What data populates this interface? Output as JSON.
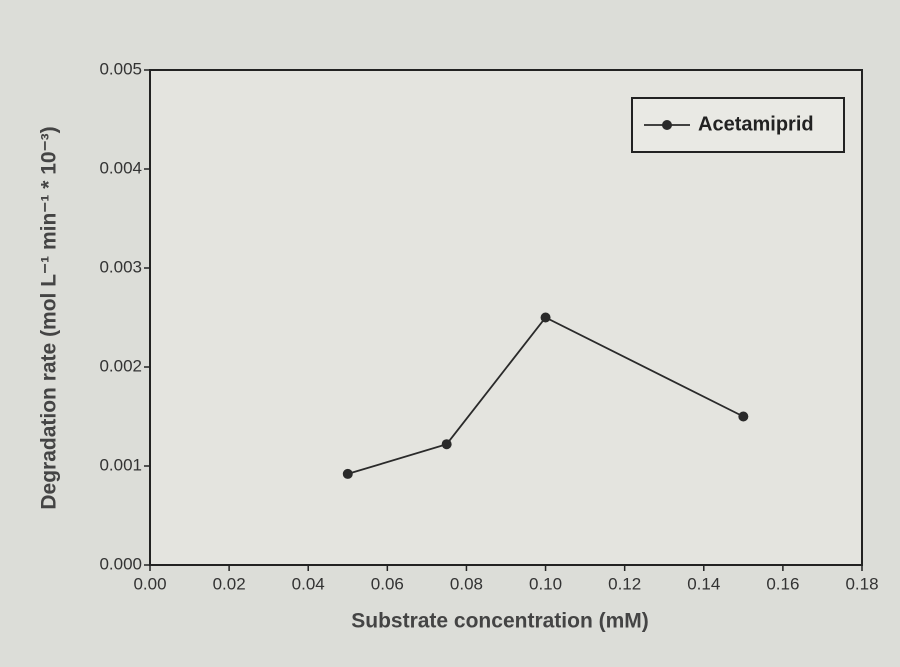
{
  "chart_data": {
    "type": "line",
    "x_label": "Substrate concentration (mM)",
    "y_label": "Degradation rate (mol L⁻¹ min⁻¹ * 10⁻³)",
    "x": [
      0.05,
      0.075,
      0.1,
      0.15
    ],
    "series": [
      {
        "name": "Acetamiprid",
        "color": "#2a2a2a",
        "values": [
          0.00092,
          0.00122,
          0.0025,
          0.0015
        ]
      }
    ],
    "xlim": [
      0,
      0.18
    ],
    "ylim": [
      0,
      0.005
    ],
    "xticks": [
      {
        "value": 0,
        "label": "0.00"
      },
      0.02,
      0.04,
      0.06,
      0.08,
      {
        "value": 0.1,
        "label": "0.10"
      },
      0.12,
      0.14,
      0.16,
      0.18
    ],
    "yticks": [
      {
        "value": 0,
        "label": "0.000"
      },
      0.001,
      0.002,
      0.003,
      0.004,
      0.005
    ],
    "legend": "upper right",
    "grid": false
  }
}
